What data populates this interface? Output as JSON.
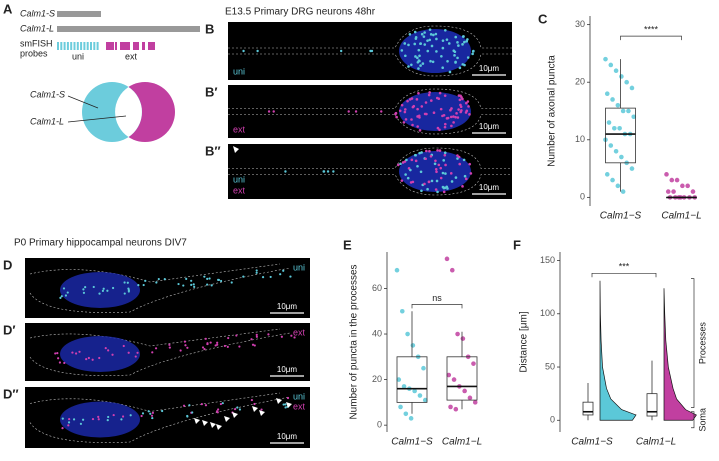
{
  "panel_A": {
    "label": "A",
    "genes": [
      "Calm1-S",
      "Calm1-L"
    ],
    "probes_title": [
      "smFISH",
      "probes"
    ],
    "probes": [
      "uni",
      "ext"
    ],
    "venn": [
      "Calm1-S",
      "Calm1-L"
    ]
  },
  "panel_B": {
    "title": "E13.5 Primary DRG neurons 48hr",
    "images": [
      {
        "label": "B",
        "channels": [
          "uni"
        ],
        "scale": "10μm"
      },
      {
        "label": "B′",
        "channels": [
          "ext"
        ],
        "scale": "10μm"
      },
      {
        "label": "B″",
        "channels": [
          "uni",
          "ext"
        ],
        "scale": "10μm"
      }
    ]
  },
  "panel_D": {
    "title": "P0 Primary hippocampal neurons DIV7",
    "images": [
      {
        "label": "D",
        "channels": [
          "uni"
        ],
        "scale": "10μm"
      },
      {
        "label": "D′",
        "channels": [
          "ext"
        ],
        "scale": "10μm"
      },
      {
        "label": "D″",
        "channels": [
          "uni",
          "ext"
        ],
        "scale": "10μm"
      }
    ]
  },
  "chart_data": [
    {
      "type": "box",
      "panel_label": "C",
      "y_label": "Number of axonal puncta",
      "categories": [
        "Calm1−S",
        "Calm1−L"
      ],
      "ylim": [
        -1.5,
        31.5
      ],
      "yticks": [
        0,
        10,
        20,
        30
      ],
      "series": [
        {
          "color": "#5bc8d8",
          "box": {
            "min": 1,
            "q1": 6,
            "median": 11,
            "q3": 15.5,
            "max": 24
          },
          "points": [
            24,
            23,
            22,
            21,
            20,
            19,
            18,
            17,
            16,
            15,
            15,
            14,
            13,
            12,
            12,
            11,
            11,
            10,
            9,
            8,
            7,
            6,
            5,
            4,
            3,
            2,
            1
          ]
        },
        {
          "color": "#c13fa0",
          "box": {
            "min": 0,
            "q1": 0,
            "median": 0,
            "q3": 0,
            "max": 0
          },
          "points": [
            4,
            3,
            3,
            2,
            2,
            1,
            1,
            1,
            0,
            0,
            0,
            0,
            0,
            0,
            0
          ]
        }
      ],
      "significance": {
        "label": "****",
        "y": 28
      }
    },
    {
      "type": "box",
      "panel_label": "E",
      "y_label": "Number of puncta in the processes",
      "categories": [
        "Calm1−S",
        "Calm1−L"
      ],
      "ylim": [
        -3,
        76
      ],
      "yticks": [
        0,
        20,
        40,
        60
      ],
      "series": [
        {
          "color": "#5bc8d8",
          "box": {
            "min": 5,
            "q1": 10,
            "median": 16,
            "q3": 30,
            "max": 50
          },
          "points": [
            68,
            50,
            40,
            35,
            30,
            25,
            20,
            17,
            16,
            15,
            13,
            11,
            8,
            5,
            3
          ]
        },
        {
          "color": "#c13fa0",
          "box": {
            "min": 7,
            "q1": 11,
            "median": 17,
            "q3": 30,
            "max": 41
          },
          "points": [
            73,
            68,
            40,
            38,
            30,
            27,
            22,
            20,
            17,
            15,
            12,
            10,
            8,
            7
          ]
        }
      ],
      "significance": {
        "label": "ns",
        "y": 53
      }
    },
    {
      "type": "violin",
      "panel_label": "F",
      "y_label": "Distance [μm]",
      "categories": [
        "Calm1−S",
        "Calm1−L"
      ],
      "ylim": [
        -11,
        158
      ],
      "yticks": [
        0,
        50,
        100,
        150
      ],
      "series": [
        {
          "color": "#5bc8d8",
          "box": {
            "min": 0,
            "q1": 5,
            "median": 8,
            "q3": 17,
            "max": 35
          },
          "density": {
            "y": [
              0,
              5,
              10,
              20,
              30,
              50,
              75,
              100,
              131
            ],
            "values": [
              0.9,
              1.0,
              0.6,
              0.3,
              0.18,
              0.07,
              0.03,
              0.01,
              0
            ]
          }
        },
        {
          "color": "#c13fa0",
          "box": {
            "min": 0,
            "q1": 4,
            "median": 8,
            "q3": 25,
            "max": 56
          },
          "density": {
            "y": [
              0,
              5,
              10,
              20,
              30,
              50,
              75,
              100,
              124
            ],
            "values": [
              0.8,
              0.9,
              0.6,
              0.35,
              0.25,
              0.12,
              0.05,
              0.02,
              0
            ]
          }
        }
      ],
      "significance": {
        "label": "***",
        "y": 138
      },
      "regions": [
        {
          "label": "Processes",
          "range": [
            12,
            133
          ]
        },
        {
          "label": "Soma",
          "range": [
            -7,
            8
          ]
        }
      ]
    }
  ]
}
